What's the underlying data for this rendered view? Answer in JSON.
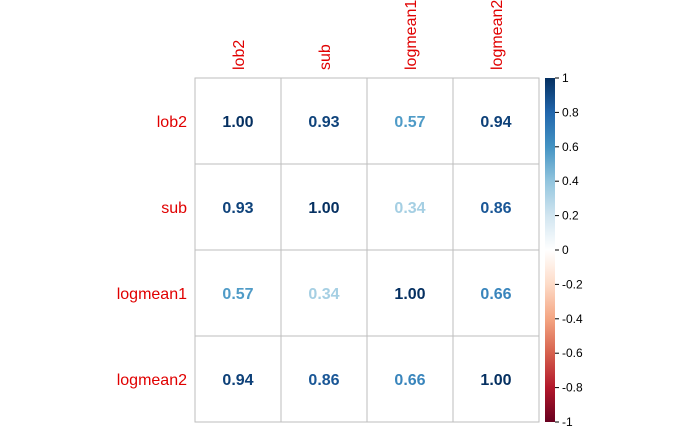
{
  "chart_data": {
    "type": "heatmap",
    "title": "",
    "variables": [
      "lob2",
      "sub",
      "logmean1",
      "logmean2"
    ],
    "matrix": [
      [
        1.0,
        0.93,
        0.57,
        0.94
      ],
      [
        0.93,
        1.0,
        0.34,
        0.86
      ],
      [
        0.57,
        0.34,
        1.0,
        0.66
      ],
      [
        0.94,
        0.86,
        0.66,
        1.0
      ]
    ],
    "value_labels": [
      [
        "1.00",
        "0.93",
        "0.57",
        "0.94"
      ],
      [
        "0.93",
        "1.00",
        "0.34",
        "0.86"
      ],
      [
        "0.57",
        "0.34",
        "1.00",
        "0.66"
      ],
      [
        "0.94",
        "0.86",
        "0.66",
        "1.00"
      ]
    ],
    "color_scale": {
      "range": [
        -1,
        1
      ],
      "ticks": [
        "1",
        "0.8",
        "0.6",
        "0.4",
        "0.2",
        "0",
        "-0.2",
        "-0.4",
        "-0.6",
        "-0.8",
        "-1"
      ],
      "stops": [
        "#67001F",
        "#B2182B",
        "#D6604D",
        "#F4A582",
        "#FDDBC7",
        "#FFFFFF",
        "#D1E5F0",
        "#92C5DE",
        "#4393C3",
        "#2166AC",
        "#053061"
      ]
    },
    "label_color": "#E00000",
    "grid_color": "#BEBEBE",
    "legend_placement": "right"
  }
}
